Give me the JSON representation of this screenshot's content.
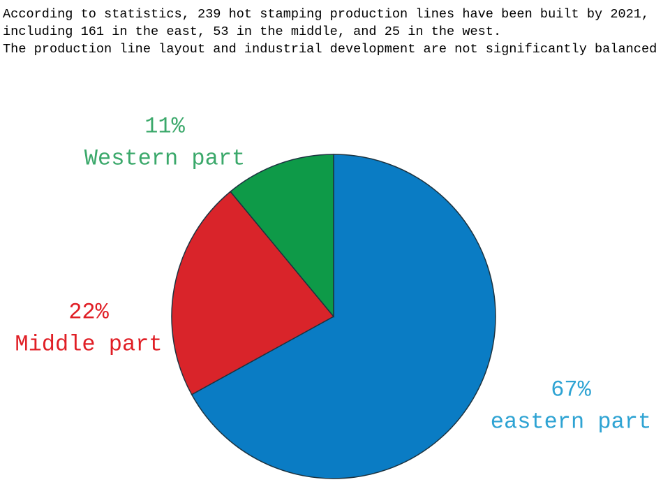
{
  "chart_data": {
    "type": "pie",
    "description": [
      "According to statistics, 239 hot stamping production lines have been built by 2021,",
      "including 161 in the east, 53 in the middle, and 25 in the west.",
      "The production line layout and industrial development are not significantly balanced"
    ],
    "categories": [
      "eastern part",
      "Middle part",
      "Western part"
    ],
    "values": [
      67,
      22,
      11
    ],
    "value_labels": [
      "67%",
      "22%",
      "11%"
    ],
    "colors": [
      "#0a7cc4",
      "#d9242a",
      "#0e9a48"
    ],
    "label_colors": [
      "#2ea3d3",
      "#e01e25",
      "#3aa86a"
    ]
  }
}
